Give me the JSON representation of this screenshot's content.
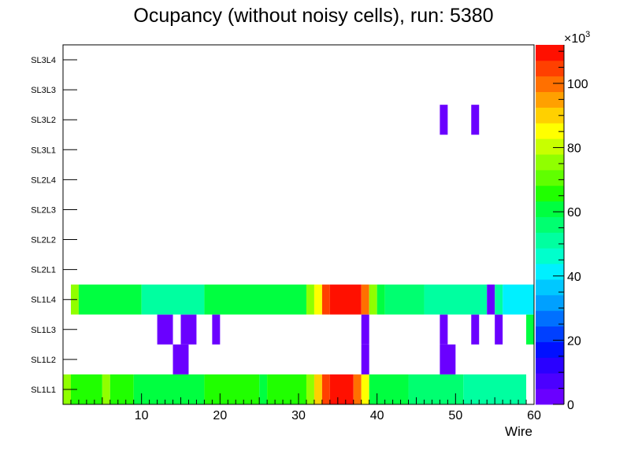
{
  "chart_data": {
    "type": "heatmap",
    "title": "Ocupancy (without noisy cells), run: 5380",
    "xlabel": "Wire",
    "ylabel": "",
    "xlim": [
      0,
      60
    ],
    "x_ticks": [
      "10",
      "20",
      "30",
      "40",
      "50",
      "60"
    ],
    "y_categories": [
      "SL1L1",
      "SL1L2",
      "SL1L3",
      "SL1L4",
      "SL2L1",
      "SL2L2",
      "SL2L3",
      "SL2L4",
      "SL3L1",
      "SL3L2",
      "SL3L3",
      "SL3L4"
    ],
    "z_range": [
      0,
      112000
    ],
    "z_exponent_label": "×10",
    "z_exponent": "3",
    "z_ticks": [
      "0",
      "20",
      "40",
      "60",
      "80",
      "100"
    ],
    "palette": [
      "#6a00ff",
      "#4b00ff",
      "#2a00ff",
      "#0010ff",
      "#0040ff",
      "#0070ff",
      "#00a0ff",
      "#00c8ff",
      "#00f0ff",
      "#00ffcc",
      "#00ffa0",
      "#00ff70",
      "#00ff40",
      "#20ff00",
      "#60ff00",
      "#90ff00",
      "#c8ff00",
      "#ffff00",
      "#ffd000",
      "#ffa000",
      "#ff7000",
      "#ff4000",
      "#ff1000"
    ],
    "rows": [
      {
        "layer": "SL1L1",
        "segments": [
          {
            "from": 0,
            "to": 1,
            "value": 75000
          },
          {
            "from": 1,
            "to": 5,
            "value": 68000
          },
          {
            "from": 5,
            "to": 6,
            "value": 75000
          },
          {
            "from": 6,
            "to": 9,
            "value": 68000
          },
          {
            "from": 9,
            "to": 18,
            "value": 63000
          },
          {
            "from": 18,
            "to": 25,
            "value": 68000
          },
          {
            "from": 25,
            "to": 26,
            "value": 60000
          },
          {
            "from": 26,
            "to": 31,
            "value": 68000
          },
          {
            "from": 31,
            "to": 32,
            "value": 75000
          },
          {
            "from": 32,
            "to": 33,
            "value": 90000
          },
          {
            "from": 33,
            "to": 34,
            "value": 103000
          },
          {
            "from": 34,
            "to": 37,
            "value": 111000
          },
          {
            "from": 37,
            "to": 38,
            "value": 100000
          },
          {
            "from": 38,
            "to": 39,
            "value": 86000
          },
          {
            "from": 39,
            "to": 44,
            "value": 63000
          },
          {
            "from": 44,
            "to": 51,
            "value": 58000
          },
          {
            "from": 51,
            "to": 59,
            "value": 53000
          }
        ]
      },
      {
        "layer": "SL1L2",
        "segments": [
          {
            "from": 14,
            "to": 16,
            "value": 3000
          },
          {
            "from": 38,
            "to": 39,
            "value": 3000
          },
          {
            "from": 48,
            "to": 50,
            "value": 3000
          }
        ]
      },
      {
        "layer": "SL1L3",
        "segments": [
          {
            "from": 12,
            "to": 14,
            "value": 3000
          },
          {
            "from": 15,
            "to": 17,
            "value": 3000
          },
          {
            "from": 19,
            "to": 20,
            "value": 3000
          },
          {
            "from": 38,
            "to": 39,
            "value": 3000
          },
          {
            "from": 48,
            "to": 49,
            "value": 3000
          },
          {
            "from": 52,
            "to": 53,
            "value": 3000
          },
          {
            "from": 55,
            "to": 56,
            "value": 3000
          },
          {
            "from": 59,
            "to": 60,
            "value": 63000
          }
        ]
      },
      {
        "layer": "SL1L4",
        "segments": [
          {
            "from": 1,
            "to": 2,
            "value": 75000
          },
          {
            "from": 2,
            "to": 10,
            "value": 63000
          },
          {
            "from": 10,
            "to": 18,
            "value": 53000
          },
          {
            "from": 18,
            "to": 31,
            "value": 63000
          },
          {
            "from": 31,
            "to": 32,
            "value": 75000
          },
          {
            "from": 32,
            "to": 33,
            "value": 86000
          },
          {
            "from": 33,
            "to": 34,
            "value": 103000
          },
          {
            "from": 34,
            "to": 38,
            "value": 111000
          },
          {
            "from": 38,
            "to": 39,
            "value": 100000
          },
          {
            "from": 39,
            "to": 40,
            "value": 75000
          },
          {
            "from": 40,
            "to": 41,
            "value": 63000
          },
          {
            "from": 41,
            "to": 46,
            "value": 58000
          },
          {
            "from": 46,
            "to": 54,
            "value": 53000
          },
          {
            "from": 54,
            "to": 55,
            "value": 3000
          },
          {
            "from": 55,
            "to": 56,
            "value": 53000
          },
          {
            "from": 56,
            "to": 60,
            "value": 43000
          }
        ]
      },
      {
        "layer": "SL2L1",
        "segments": []
      },
      {
        "layer": "SL2L2",
        "segments": []
      },
      {
        "layer": "SL2L3",
        "segments": []
      },
      {
        "layer": "SL2L4",
        "segments": []
      },
      {
        "layer": "SL3L1",
        "segments": []
      },
      {
        "layer": "SL3L2",
        "segments": [
          {
            "from": 48,
            "to": 49,
            "value": 3000
          },
          {
            "from": 52,
            "to": 53,
            "value": 3000
          }
        ]
      },
      {
        "layer": "SL3L3",
        "segments": []
      },
      {
        "layer": "SL3L4",
        "segments": []
      }
    ]
  }
}
